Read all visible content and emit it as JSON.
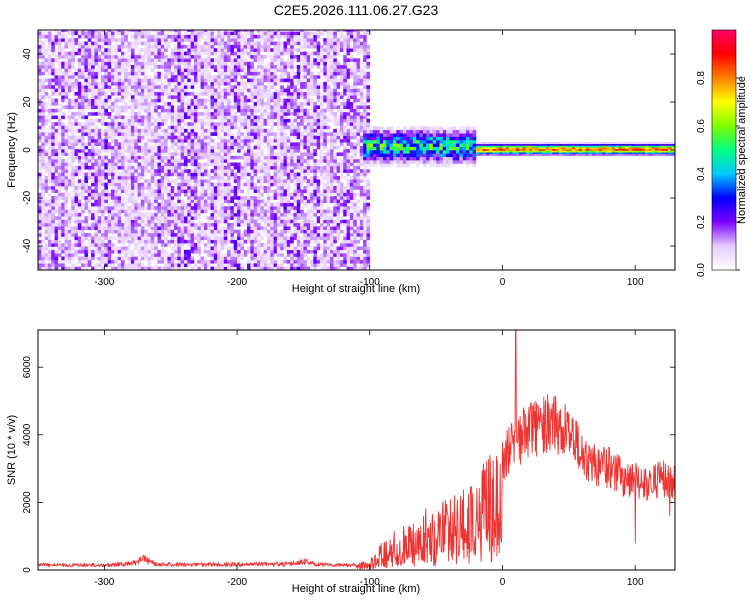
{
  "figure": {
    "title": "C2E5.2026.111.06.27.G23"
  },
  "chart_data": [
    {
      "type": "heatmap",
      "title": "C2E5.2026.111.06.27.G23",
      "xlabel": "Height of straight line (km)",
      "ylabel": "Frequency (Hz)",
      "xlim": [
        -350,
        130
      ],
      "ylim": [
        -50,
        50
      ],
      "x_ticks": [
        -300,
        -200,
        -100,
        0,
        100
      ],
      "y_ticks": [
        -40,
        -20,
        0,
        20,
        40
      ],
      "colorbar": {
        "label": "Normalized spectral amplitude",
        "range": [
          0,
          1
        ],
        "ticks": [
          "0.0",
          "0.2",
          "0.4",
          "0.6",
          "0.8"
        ],
        "colors": [
          "#ffffff",
          "#e6ccff",
          "#7b00ff",
          "#0000ff",
          "#00c8ff",
          "#00ff80",
          "#80ff00",
          "#ffff00",
          "#ff8000",
          "#ff0000",
          "#ff0066"
        ]
      },
      "regions": [
        {
          "x_range": [
            -350,
            -100
          ],
          "description": "broadband noise",
          "amplitude": 0.15
        },
        {
          "x_range": [
            -105,
            -20
          ],
          "center_hz": 1,
          "halfwidth_hz": 6,
          "amplitude": 0.5
        },
        {
          "x_range": [
            -20,
            130
          ],
          "center_hz": 0,
          "halfwidth_hz": 2,
          "amplitude": 0.85
        }
      ]
    },
    {
      "type": "line",
      "xlabel": "Height of straight line (km)",
      "ylabel": "SNR (10 * v/v)",
      "xlim": [
        -350,
        130
      ],
      "ylim": [
        0,
        7100
      ],
      "x_ticks": [
        -300,
        -200,
        -100,
        0,
        100
      ],
      "y_ticks": [
        0,
        2000,
        4000,
        6000
      ],
      "series_color": "#ee3333",
      "envelope": {
        "x": [
          -350,
          -300,
          -280,
          -270,
          -260,
          -200,
          -160,
          -150,
          -140,
          -110,
          -100,
          -90,
          -70,
          -50,
          -30,
          -20,
          -10,
          0,
          10,
          20,
          30,
          40,
          50,
          60,
          70,
          80,
          90,
          100,
          110,
          120,
          130
        ],
        "y": [
          200,
          200,
          250,
          450,
          230,
          220,
          250,
          350,
          220,
          200,
          350,
          900,
          1500,
          2000,
          2400,
          2700,
          3500,
          4000,
          4500,
          5100,
          5200,
          5300,
          4900,
          4100,
          3800,
          3700,
          3300,
          3200,
          3100,
          3300,
          3100
        ]
      },
      "spikes": [
        {
          "x": 10,
          "y": 7100
        },
        {
          "x": 100,
          "y": 800
        },
        {
          "x": 126,
          "y": 1600
        }
      ]
    }
  ]
}
